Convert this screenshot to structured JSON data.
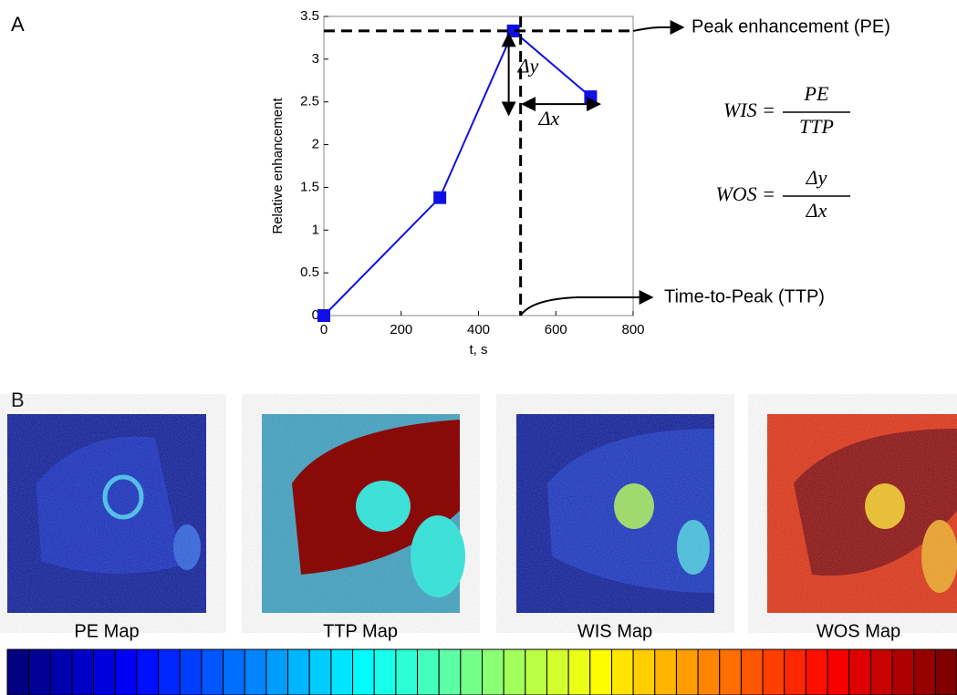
{
  "panel_labels": [
    "A",
    "B"
  ],
  "chart_data": {
    "type": "line",
    "x_label": "t, s",
    "y_label": "Relative enhancement",
    "x": [
      0,
      300,
      490,
      690
    ],
    "series": [
      {
        "name": "Relative enhancement",
        "color": "#1010e6",
        "values": [
          0,
          1.38,
          3.33,
          2.56
        ]
      }
    ],
    "xlim": [
      0,
      800
    ],
    "xticks": [
      0,
      200,
      400,
      600,
      800
    ],
    "ylim": [
      0,
      3.5
    ],
    "yticks": [
      0,
      0.5,
      1,
      1.5,
      2,
      2.5,
      3,
      3.5
    ],
    "annotations": {
      "peak": "Peak enhancement (PE)",
      "ttp": "Time-to-Peak  (TTP)",
      "dy": "Δy",
      "dx": "Δx"
    },
    "formulas": [
      {
        "lhs": "WIS =",
        "numerator": "PE",
        "denominator": "TTP"
      },
      {
        "lhs": "WOS =",
        "numerator": "Δy",
        "denominator": "Δx"
      }
    ]
  },
  "maps": [
    "PE Map",
    "TTP  Map",
    "WIS Map",
    "WOS Map"
  ]
}
